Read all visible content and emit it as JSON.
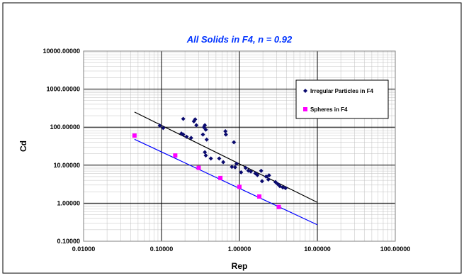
{
  "chart_data": {
    "type": "scatter",
    "title": "All Solids in F4, n = 0.92",
    "xlabel": "Rep",
    "ylabel": "Cd",
    "x_scale": "log",
    "y_scale": "log",
    "xlim": [
      0.01,
      100
    ],
    "ylim": [
      0.1,
      10000
    ],
    "x_ticks": [
      "0.01000",
      "0.10000",
      "1.00000",
      "10.00000",
      "100.00000"
    ],
    "y_ticks": [
      "0.10000",
      "1.00000",
      "10.00000",
      "100.00000",
      "1000.00000",
      "10000.00000"
    ],
    "grid": true,
    "legend_position": "top-right",
    "series": [
      {
        "name": "Irregular Particles in F4",
        "marker": "diamond",
        "color": "#0a0a6e",
        "points": [
          [
            0.095,
            110
          ],
          [
            0.105,
            95
          ],
          [
            0.18,
            68
          ],
          [
            0.19,
            64
          ],
          [
            0.19,
            165
          ],
          [
            0.21,
            56
          ],
          [
            0.24,
            52
          ],
          [
            0.26,
            142
          ],
          [
            0.27,
            160
          ],
          [
            0.28,
            112
          ],
          [
            0.34,
            64
          ],
          [
            0.35,
            100
          ],
          [
            0.36,
            112
          ],
          [
            0.37,
            86
          ],
          [
            0.38,
            47
          ],
          [
            0.36,
            22
          ],
          [
            0.37,
            18
          ],
          [
            0.43,
            15
          ],
          [
            0.55,
            15
          ],
          [
            0.62,
            12
          ],
          [
            0.66,
            78
          ],
          [
            0.67,
            64
          ],
          [
            0.8,
            9
          ],
          [
            0.88,
            8.8
          ],
          [
            0.85,
            40
          ],
          [
            0.92,
            11
          ],
          [
            1.05,
            6.5
          ],
          [
            1.2,
            8.5
          ],
          [
            1.3,
            7.2
          ],
          [
            1.4,
            6.8
          ],
          [
            1.6,
            6.1
          ],
          [
            1.7,
            5.5
          ],
          [
            1.9,
            7.1
          ],
          [
            1.95,
            3.8
          ],
          [
            2.2,
            5.0
          ],
          [
            2.35,
            4.2
          ],
          [
            2.4,
            5.4
          ],
          [
            2.9,
            3.6
          ],
          [
            3.1,
            3.2
          ],
          [
            3.3,
            2.8
          ],
          [
            3.6,
            2.6
          ],
          [
            3.9,
            2.5
          ]
        ]
      },
      {
        "name": "Spheres in F4",
        "marker": "square",
        "color": "#ff00ff",
        "points": [
          [
            0.045,
            60
          ],
          [
            0.15,
            18
          ],
          [
            0.3,
            8.5
          ],
          [
            0.57,
            4.6
          ],
          [
            1.0,
            2.7
          ],
          [
            1.8,
            1.5
          ],
          [
            3.2,
            0.8
          ]
        ]
      }
    ],
    "trendlines": [
      {
        "series": "Irregular Particles in F4",
        "color": "#000000",
        "from": [
          0.045,
          250
        ],
        "to": [
          10,
          1.05
        ]
      },
      {
        "series": "Spheres in F4",
        "color": "#0000ff",
        "from": [
          0.045,
          48
        ],
        "to": [
          10,
          0.27
        ]
      }
    ]
  }
}
